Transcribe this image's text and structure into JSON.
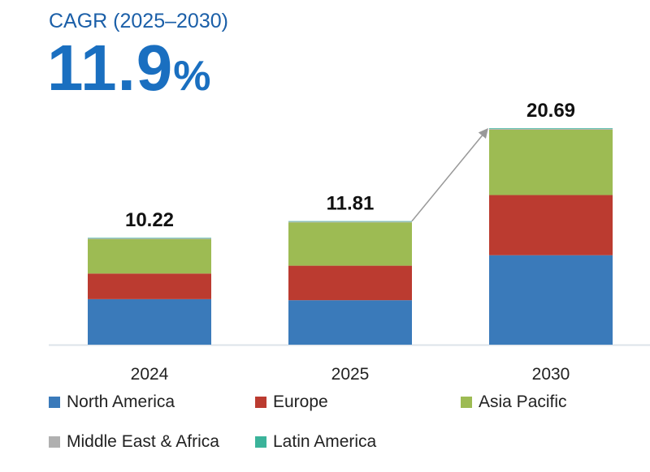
{
  "header": {
    "cagr_label": "CAGR (2025–2030)",
    "cagr_value": "11.9",
    "cagr_unit": "%"
  },
  "chart_data": {
    "type": "bar",
    "stacked": true,
    "categories": [
      "2024",
      "2025",
      "2030"
    ],
    "totals": [
      "10.22",
      "11.81",
      "20.69"
    ],
    "series": [
      {
        "name": "North America",
        "color": "#3a7aba",
        "values": [
          4.35,
          4.25,
          8.55
        ]
      },
      {
        "name": "Europe",
        "color": "#bb3b30",
        "values": [
          2.45,
          3.3,
          5.75
        ]
      },
      {
        "name": "Asia Pacific",
        "color": "#9dbb53",
        "values": [
          3.3,
          4.14,
          6.25
        ]
      },
      {
        "name": "Middle East & Africa",
        "color": "#b0b0b0",
        "values": [
          0.07,
          0.07,
          0.08
        ]
      },
      {
        "name": "Latin America",
        "color": "#3bb39a",
        "values": [
          0.05,
          0.05,
          0.06
        ]
      }
    ],
    "ylim": [
      0,
      21
    ],
    "grid": false,
    "legend": "bottom",
    "annotation": "arrow from 2025 to 2030"
  }
}
